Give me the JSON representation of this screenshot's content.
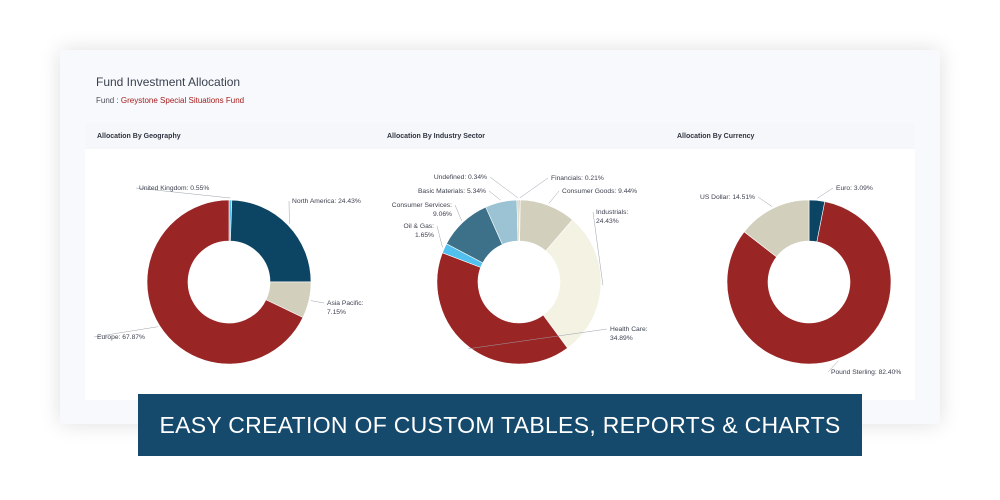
{
  "header": {
    "title": "Fund Investment Allocation",
    "fund_prefix": "Fund : ",
    "fund_name": "Greystone Special Situations Fund"
  },
  "banner": {
    "text": "EASY CREATION OF CUSTOM TABLES, REPORTS & CHARTS"
  },
  "colors": {
    "navy": "#0c4564",
    "red": "#9a2525",
    "beige": "#d2cfbc",
    "cream": "#f4f2e2",
    "steel": "#3d7189",
    "light_blue": "#9bc3d3",
    "cyan": "#52c0ee"
  },
  "chart_data": [
    {
      "type": "pie",
      "title": "Allocation By Geography",
      "slices": [
        {
          "label": "United Kingdom: 0.55%",
          "value": 0.55,
          "color": "#52c0ee"
        },
        {
          "label": "North America: 24.43%",
          "value": 24.43,
          "color": "#0c4564"
        },
        {
          "label": "Asia Pacific: 7.15%",
          "value": 7.15,
          "color": "#d2cfbc"
        },
        {
          "label": "Europe: 67.87%",
          "value": 67.87,
          "color": "#9a2525"
        }
      ]
    },
    {
      "type": "pie",
      "title": "Allocation By Industry Sector",
      "slices": [
        {
          "label": "Financials: 0.21%",
          "value": 0.21,
          "color": "#52c0ee"
        },
        {
          "label": "Consumer Goods: 9.44%",
          "value": 9.44,
          "color": "#d2cfbc"
        },
        {
          "label": "Industrials: 24.43%",
          "value": 24.43,
          "color": "#f4f2e2"
        },
        {
          "label": "Health Care: 34.89%",
          "value": 34.89,
          "color": "#9a2525"
        },
        {
          "label": "Oil & Gas: 1.65%",
          "value": 1.65,
          "color": "#52c0ee"
        },
        {
          "label": "Consumer Services: 9.06%",
          "value": 9.06,
          "color": "#3d7189"
        },
        {
          "label": "Basic Materials: 5.34%",
          "value": 5.34,
          "color": "#9bc3d3"
        },
        {
          "label": "Undefined: 0.34%",
          "value": 0.34,
          "color": "#d2cfbc"
        }
      ]
    },
    {
      "type": "pie",
      "title": "Allocation By Currency",
      "slices": [
        {
          "label": "Euro: 3.09%",
          "value": 3.09,
          "color": "#0c4564"
        },
        {
          "label": "Pound Sterling: 82.40%",
          "value": 82.4,
          "color": "#9a2525"
        },
        {
          "label": "US Dollar: 14.51%",
          "value": 14.51,
          "color": "#d2cfbc"
        }
      ]
    }
  ]
}
